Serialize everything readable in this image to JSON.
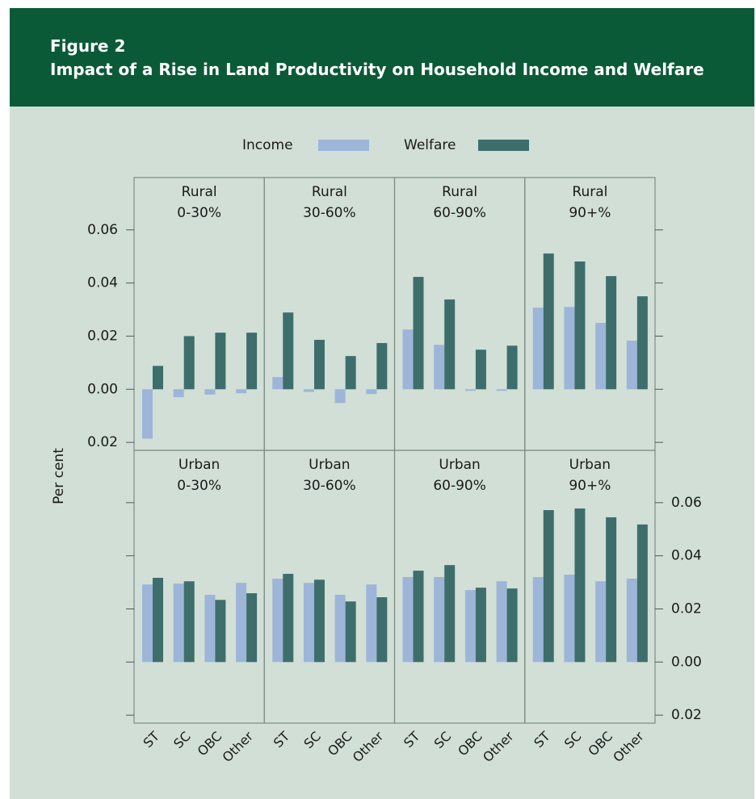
{
  "header": {
    "label": "Figure 2",
    "title": "Impact of a Rise in Land Productivity on Household Income and Welfare"
  },
  "chart_data": {
    "type": "bar",
    "y_label": "Per cent",
    "categories": [
      "ST",
      "SC",
      "OBC",
      "Other"
    ],
    "series": [
      {
        "name": "Income",
        "color": "#9db5d8"
      },
      {
        "name": "Welfare",
        "color": "#3d6e6c"
      }
    ],
    "ylim": [
      -0.023,
      0.0797
    ],
    "yticks": [
      0.06,
      0.04,
      0.02,
      {
        "value": 0,
        "label": "0.00"
      },
      {
        "value": -0.02,
        "label": "0.02"
      }
    ],
    "panels": [
      {
        "title": [
          "Rural",
          "0-30%"
        ],
        "values": [
          [
            -0.0186,
            -0.003,
            -0.002,
            -0.0015
          ],
          [
            0.0088,
            0.02,
            0.0213,
            0.0213
          ]
        ]
      },
      {
        "title": [
          "Rural",
          "30-60%"
        ],
        "values": [
          [
            0.0046,
            -0.001,
            -0.0052,
            -0.0018
          ],
          [
            0.0289,
            0.0186,
            0.0125,
            0.0174
          ]
        ]
      },
      {
        "title": [
          "Rural",
          "60-90%"
        ],
        "values": [
          [
            0.0225,
            0.0167,
            -0.0006,
            -0.0006
          ],
          [
            0.0423,
            0.0338,
            0.0149,
            0.0164
          ]
        ]
      },
      {
        "title": [
          "Rural",
          "90+%"
        ],
        "values": [
          [
            0.0307,
            0.031,
            0.025,
            0.0183
          ],
          [
            0.0511,
            0.0481,
            0.0426,
            0.035
          ]
        ]
      },
      {
        "title": [
          "Urban",
          "0-30%"
        ],
        "values": [
          [
            0.0292,
            0.0295,
            0.0253,
            0.0298
          ],
          [
            0.0317,
            0.0304,
            0.0234,
            0.0259
          ]
        ]
      },
      {
        "title": [
          "Urban",
          "30-60%"
        ],
        "values": [
          [
            0.0314,
            0.0298,
            0.0253,
            0.0292
          ],
          [
            0.0332,
            0.031,
            0.0228,
            0.0244
          ]
        ]
      },
      {
        "title": [
          "Urban",
          "60-90%"
        ],
        "values": [
          [
            0.032,
            0.032,
            0.0271,
            0.0304
          ],
          [
            0.0344,
            0.0365,
            0.028,
            0.0277
          ]
        ]
      },
      {
        "title": [
          "Urban",
          "90+%"
        ],
        "values": [
          [
            0.032,
            0.0329,
            0.0304,
            0.0314
          ],
          [
            0.0572,
            0.0578,
            0.0545,
            0.0518
          ]
        ]
      }
    ]
  }
}
